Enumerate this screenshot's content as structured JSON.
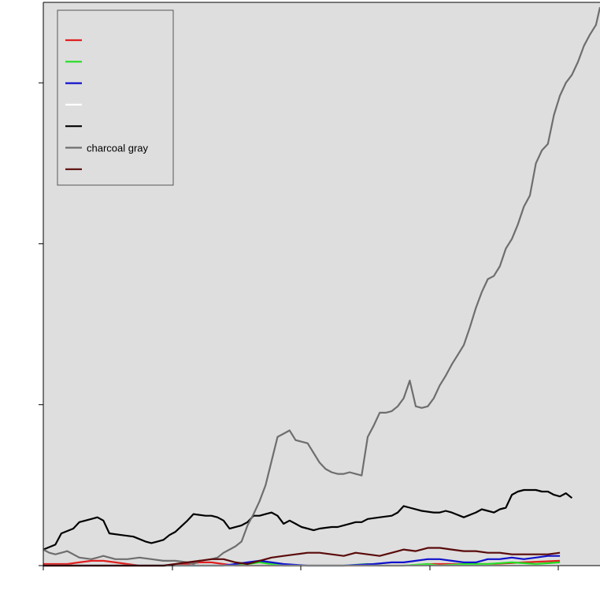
{
  "chart_data": {
    "type": "line",
    "title": "",
    "xlabel": "",
    "ylabel": "",
    "background": "#dedede",
    "grid": false,
    "legend": {
      "placement": "top-left",
      "title": "",
      "entries": [
        {
          "label": "",
          "color": "#e02020"
        },
        {
          "label": "",
          "color": "#22dd22"
        },
        {
          "label": "",
          "color": "#1010cc"
        },
        {
          "label": "",
          "color": "#ffffff"
        },
        {
          "label": "",
          "color": "#000000"
        },
        {
          "label": "charcoal gray",
          "color": "#6e6e6e"
        },
        {
          "label": "",
          "color": "#5a0a0a"
        }
      ]
    },
    "xlim": [
      0,
      86
    ],
    "ylim": [
      0,
      350
    ],
    "xticks": [
      0,
      20,
      40,
      60,
      80
    ],
    "yticks": [
      0,
      100,
      200,
      300
    ],
    "series": [
      {
        "color": "#e02020",
        "points": [
          [
            0,
            1
          ],
          [
            4,
            1
          ],
          [
            6,
            2
          ],
          [
            8,
            3
          ],
          [
            10,
            3
          ],
          [
            12,
            2
          ],
          [
            14,
            1
          ],
          [
            16,
            0
          ],
          [
            20,
            0
          ],
          [
            22,
            0
          ],
          [
            24,
            1
          ],
          [
            26,
            2
          ],
          [
            28,
            2
          ],
          [
            30,
            1
          ],
          [
            32,
            0
          ],
          [
            36,
            0
          ],
          [
            40,
            0
          ],
          [
            44,
            0
          ],
          [
            50,
            0
          ],
          [
            55,
            0
          ],
          [
            60,
            0
          ],
          [
            65,
            1
          ],
          [
            70,
            1
          ],
          [
            75,
            1
          ],
          [
            80,
            2
          ],
          [
            86,
            3
          ]
        ]
      },
      {
        "color": "#22dd22",
        "points": [
          [
            0,
            0
          ],
          [
            10,
            0
          ],
          [
            20,
            0
          ],
          [
            30,
            0
          ],
          [
            34,
            1
          ],
          [
            36,
            2
          ],
          [
            38,
            1
          ],
          [
            40,
            0
          ],
          [
            45,
            0
          ],
          [
            50,
            0
          ],
          [
            54,
            1
          ],
          [
            56,
            0
          ],
          [
            60,
            0
          ],
          [
            64,
            1
          ],
          [
            66,
            0
          ],
          [
            70,
            1
          ],
          [
            74,
            1
          ],
          [
            78,
            2
          ],
          [
            82,
            1
          ],
          [
            86,
            2
          ]
        ]
      },
      {
        "color": "#1010cc",
        "points": [
          [
            0,
            0
          ],
          [
            10,
            0
          ],
          [
            20,
            0
          ],
          [
            30,
            0
          ],
          [
            34,
            2
          ],
          [
            36,
            3
          ],
          [
            38,
            2
          ],
          [
            40,
            1
          ],
          [
            44,
            0
          ],
          [
            50,
            0
          ],
          [
            55,
            1
          ],
          [
            58,
            2
          ],
          [
            60,
            2
          ],
          [
            62,
            3
          ],
          [
            64,
            4
          ],
          [
            66,
            4
          ],
          [
            68,
            3
          ],
          [
            70,
            2
          ],
          [
            72,
            2
          ],
          [
            74,
            4
          ],
          [
            76,
            4
          ],
          [
            78,
            5
          ],
          [
            80,
            4
          ],
          [
            82,
            5
          ],
          [
            84,
            6
          ],
          [
            86,
            6
          ]
        ]
      },
      {
        "color": "#ffffff",
        "points": [
          [
            0,
            0
          ],
          [
            10,
            0
          ],
          [
            20,
            0
          ],
          [
            30,
            0
          ],
          [
            40,
            0
          ],
          [
            50,
            0
          ],
          [
            60,
            0
          ],
          [
            70,
            0
          ],
          [
            80,
            0
          ],
          [
            86,
            0
          ]
        ]
      },
      {
        "color": "#000000",
        "points": [
          [
            0,
            10
          ],
          [
            2,
            13
          ],
          [
            3,
            20
          ],
          [
            5,
            23
          ],
          [
            6,
            27
          ],
          [
            8,
            29
          ],
          [
            9,
            30
          ],
          [
            10,
            28
          ],
          [
            11,
            20
          ],
          [
            13,
            19
          ],
          [
            15,
            18
          ],
          [
            17,
            15
          ],
          [
            18,
            14
          ],
          [
            19,
            15
          ],
          [
            20,
            16
          ],
          [
            21,
            19
          ],
          [
            22,
            21
          ],
          [
            24,
            28
          ],
          [
            25,
            32
          ],
          [
            27,
            31
          ],
          [
            28,
            31
          ],
          [
            29,
            30
          ],
          [
            30,
            28
          ],
          [
            31,
            23
          ],
          [
            33,
            25
          ],
          [
            34,
            27
          ],
          [
            35,
            31
          ],
          [
            36,
            31
          ],
          [
            37,
            32
          ],
          [
            38,
            33
          ],
          [
            39,
            31
          ],
          [
            40,
            26
          ],
          [
            41,
            28
          ],
          [
            42,
            26
          ],
          [
            43,
            24
          ],
          [
            44,
            23
          ],
          [
            45,
            22
          ],
          [
            46,
            23
          ],
          [
            48,
            24
          ],
          [
            49,
            24
          ],
          [
            50,
            25
          ],
          [
            51,
            26
          ],
          [
            52,
            27
          ],
          [
            53,
            27
          ],
          [
            54,
            29
          ],
          [
            56,
            30
          ],
          [
            58,
            31
          ],
          [
            59,
            33
          ],
          [
            60,
            37
          ],
          [
            61,
            36
          ],
          [
            63,
            34
          ],
          [
            65,
            33
          ],
          [
            66,
            33
          ],
          [
            67,
            34
          ],
          [
            68,
            33
          ],
          [
            70,
            30
          ],
          [
            72,
            33
          ],
          [
            73,
            35
          ],
          [
            74,
            34
          ],
          [
            75,
            33
          ],
          [
            76,
            35
          ],
          [
            77,
            36
          ],
          [
            78,
            44
          ],
          [
            79,
            46
          ],
          [
            80,
            47
          ],
          [
            81,
            47
          ],
          [
            82,
            47
          ],
          [
            83,
            46
          ],
          [
            84,
            46
          ],
          [
            85,
            44
          ],
          [
            86,
            43
          ],
          [
            87,
            45
          ],
          [
            88,
            42
          ]
        ]
      },
      {
        "color": "#6e6e6e",
        "points": [
          [
            0,
            10
          ],
          [
            1,
            8
          ],
          [
            2,
            7
          ],
          [
            3,
            8
          ],
          [
            4,
            9
          ],
          [
            5,
            7
          ],
          [
            6,
            5
          ],
          [
            8,
            4
          ],
          [
            9,
            5
          ],
          [
            10,
            6
          ],
          [
            12,
            4
          ],
          [
            14,
            4
          ],
          [
            16,
            5
          ],
          [
            18,
            4
          ],
          [
            20,
            3
          ],
          [
            22,
            3
          ],
          [
            24,
            2
          ],
          [
            25,
            1
          ],
          [
            26,
            3
          ],
          [
            28,
            4
          ],
          [
            29,
            5
          ],
          [
            30,
            8
          ],
          [
            31,
            10
          ],
          [
            32,
            12
          ],
          [
            33,
            15
          ],
          [
            34,
            25
          ],
          [
            35,
            32
          ],
          [
            36,
            40
          ],
          [
            37,
            50
          ],
          [
            38,
            65
          ],
          [
            39,
            80
          ],
          [
            40,
            82
          ],
          [
            41,
            84
          ],
          [
            42,
            78
          ],
          [
            43,
            77
          ],
          [
            44,
            76
          ],
          [
            45,
            70
          ],
          [
            46,
            64
          ],
          [
            47,
            60
          ],
          [
            48,
            58
          ],
          [
            49,
            57
          ],
          [
            50,
            57
          ],
          [
            51,
            58
          ],
          [
            52,
            57
          ],
          [
            53,
            56
          ],
          [
            54,
            80
          ],
          [
            55,
            87
          ],
          [
            56,
            95
          ],
          [
            57,
            95
          ],
          [
            58,
            96
          ],
          [
            59,
            99
          ],
          [
            60,
            104
          ],
          [
            61,
            115
          ],
          [
            62,
            99
          ],
          [
            63,
            98
          ],
          [
            64,
            99
          ],
          [
            65,
            104
          ],
          [
            66,
            112
          ],
          [
            67,
            118
          ],
          [
            68,
            125
          ],
          [
            69,
            131
          ],
          [
            70,
            137
          ],
          [
            71,
            148
          ],
          [
            72,
            160
          ],
          [
            73,
            170
          ],
          [
            74,
            178
          ],
          [
            75,
            180
          ],
          [
            76,
            186
          ],
          [
            77,
            197
          ],
          [
            78,
            203
          ],
          [
            79,
            212
          ],
          [
            80,
            223
          ],
          [
            81,
            230
          ],
          [
            82,
            250
          ],
          [
            83,
            258
          ],
          [
            84,
            262
          ],
          [
            85,
            280
          ],
          [
            86,
            292
          ],
          [
            87,
            300
          ],
          [
            88,
            305
          ],
          [
            89,
            313
          ],
          [
            90,
            323
          ],
          [
            91,
            330
          ],
          [
            92,
            336
          ],
          [
            93,
            347
          ]
        ]
      },
      {
        "color": "#5a0a0a",
        "points": [
          [
            0,
            0
          ],
          [
            4,
            0
          ],
          [
            10,
            0
          ],
          [
            16,
            0
          ],
          [
            20,
            0
          ],
          [
            24,
            2
          ],
          [
            26,
            3
          ],
          [
            28,
            4
          ],
          [
            30,
            4
          ],
          [
            32,
            2
          ],
          [
            34,
            1
          ],
          [
            36,
            3
          ],
          [
            38,
            5
          ],
          [
            40,
            6
          ],
          [
            42,
            7
          ],
          [
            44,
            8
          ],
          [
            46,
            8
          ],
          [
            48,
            7
          ],
          [
            50,
            6
          ],
          [
            52,
            8
          ],
          [
            54,
            7
          ],
          [
            56,
            6
          ],
          [
            58,
            8
          ],
          [
            60,
            10
          ],
          [
            62,
            9
          ],
          [
            64,
            11
          ],
          [
            66,
            11
          ],
          [
            68,
            10
          ],
          [
            70,
            9
          ],
          [
            72,
            9
          ],
          [
            74,
            8
          ],
          [
            76,
            8
          ],
          [
            78,
            7
          ],
          [
            80,
            7
          ],
          [
            82,
            7
          ],
          [
            84,
            7
          ],
          [
            86,
            8
          ]
        ]
      }
    ]
  }
}
